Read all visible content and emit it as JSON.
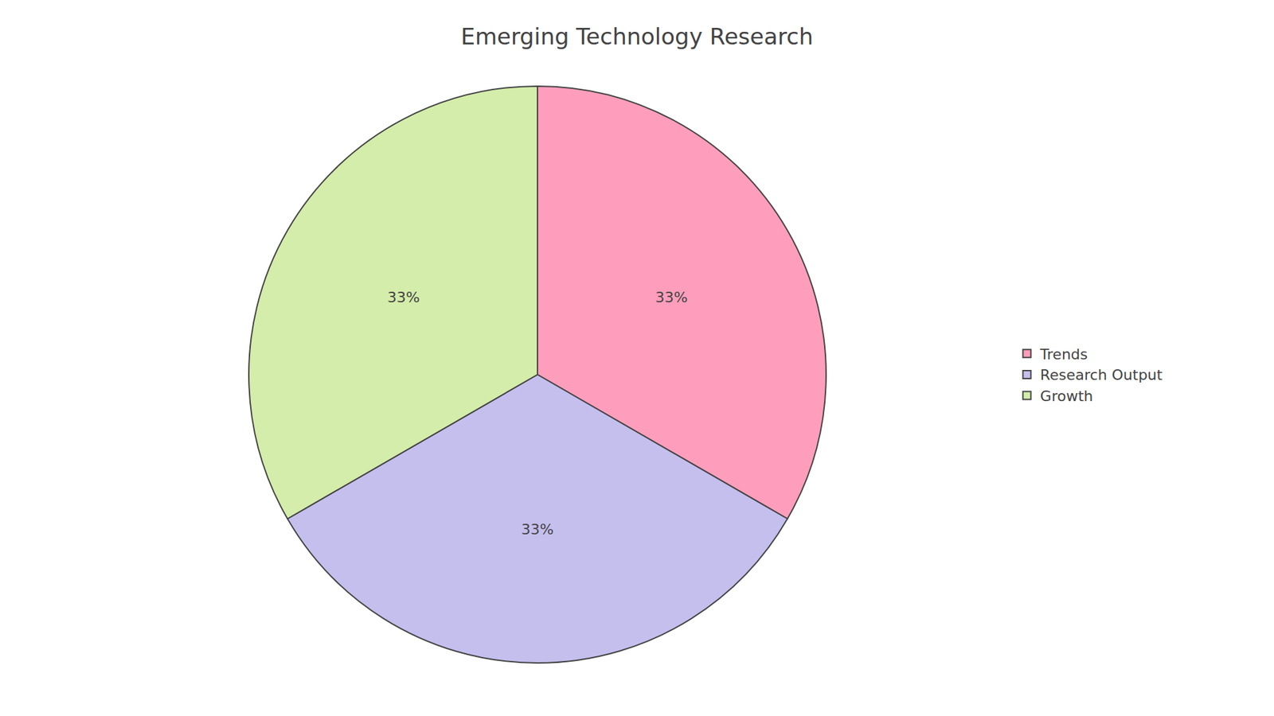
{
  "chart_data": {
    "type": "pie",
    "title": "Emerging Technology Research",
    "categories": [
      "Trends",
      "Research Output",
      "Growth"
    ],
    "values": [
      33,
      33,
      33
    ],
    "value_labels": [
      "33%",
      "33%",
      "33%"
    ],
    "colors": [
      "#FF9EBC",
      "#C5BFEE",
      "#D4EDAA"
    ],
    "data_labels": true,
    "legend": "right"
  }
}
